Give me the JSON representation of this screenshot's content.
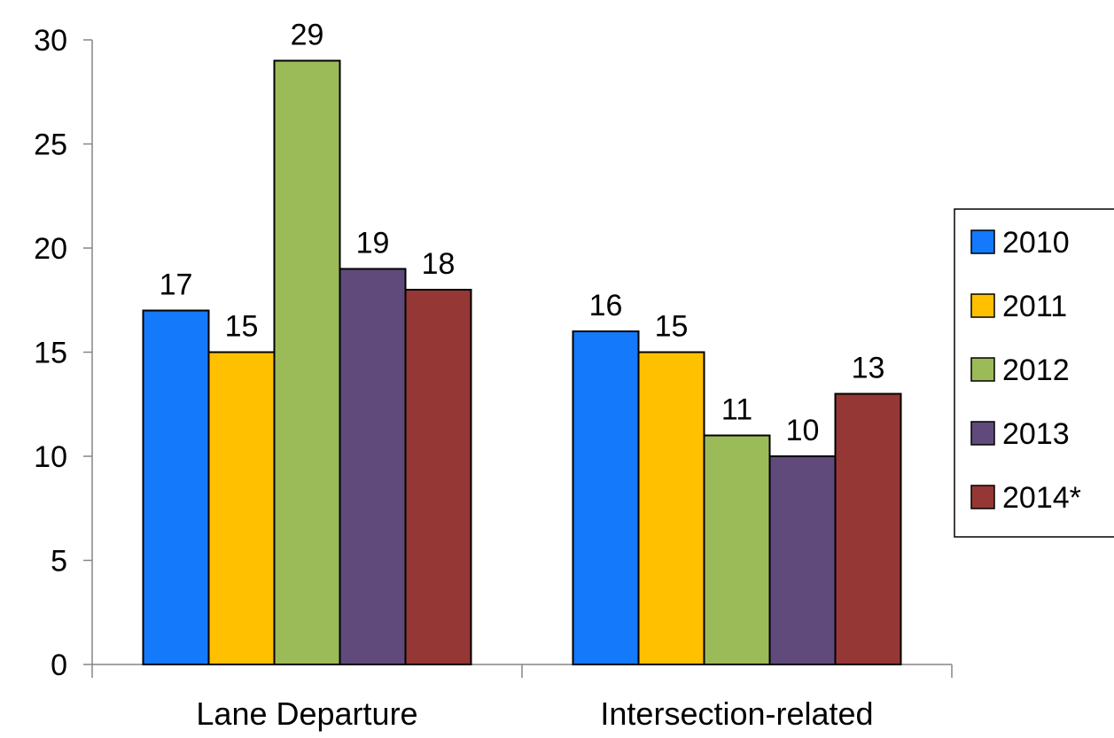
{
  "chart_data": {
    "type": "bar",
    "categories": [
      "Lane Departure",
      "Intersection-related"
    ],
    "series": [
      {
        "name": "2010",
        "values": [
          17,
          16
        ],
        "color": "#1479FB"
      },
      {
        "name": "2011",
        "values": [
          15,
          15
        ],
        "color": "#FFC000"
      },
      {
        "name": "2012",
        "values": [
          29,
          11
        ],
        "color": "#9BBB59"
      },
      {
        "name": "2013",
        "values": [
          19,
          10
        ],
        "color": "#604A7B"
      },
      {
        "name": "2014*",
        "values": [
          18,
          13
        ],
        "color": "#953735"
      }
    ],
    "title": "",
    "xlabel": "",
    "ylabel": "",
    "ylim": [
      0,
      30
    ],
    "yticks": [
      0,
      5,
      10,
      15,
      20,
      25,
      30
    ],
    "grid": false,
    "data_labels": true,
    "legend": "right"
  }
}
